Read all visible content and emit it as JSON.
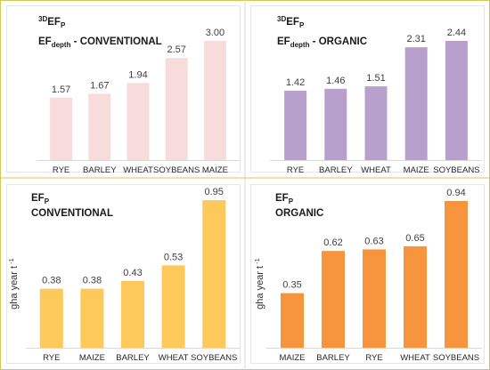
{
  "chart_data": [
    {
      "type": "bar",
      "title_lines": [
        {
          "sup": "3D",
          "main": "EF",
          "sub": "P",
          "rest": ""
        },
        {
          "sup": "",
          "main": "EF",
          "sub": "depth",
          "rest": " - CONVENTIONAL"
        }
      ],
      "ylabel": "",
      "categories": [
        "RYE",
        "BARLEY",
        "WHEAT",
        "SOYBEANS",
        "MAIZE"
      ],
      "values": [
        1.57,
        1.67,
        1.94,
        2.57,
        3.0
      ],
      "value_labels": [
        "1.57",
        "1.67",
        "1.94",
        "2.57",
        "3.00"
      ],
      "ylim": [
        0,
        3.0
      ],
      "color": "#f8dcdc",
      "grid": false
    },
    {
      "type": "bar",
      "title_lines": [
        {
          "sup": "3D",
          "main": "EF",
          "sub": "P",
          "rest": ""
        },
        {
          "sup": "",
          "main": "EF",
          "sub": "depth",
          "rest": " - ORGANIC"
        }
      ],
      "ylabel": "",
      "categories": [
        "RYE",
        "BARLEY",
        "WHEAT",
        "MAIZE",
        "SOYBEANS"
      ],
      "values": [
        1.42,
        1.46,
        1.51,
        2.31,
        2.44
      ],
      "value_labels": [
        "1.42",
        "1.46",
        "1.51",
        "2.31",
        "2.44"
      ],
      "ylim": [
        0,
        2.44
      ],
      "color": "#b8a0cc",
      "grid": false
    },
    {
      "type": "bar",
      "title_lines": [
        {
          "sup": "",
          "main": "EF",
          "sub": "P",
          "rest": ""
        },
        {
          "sup": "",
          "main": "CONVENTIONAL",
          "sub": "",
          "rest": ""
        }
      ],
      "ylabel": "gha year t",
      "ylabel_sup": "-1",
      "categories": [
        "RYE",
        "MAIZE",
        "BARLEY",
        "WHEAT",
        "SOYBEANS"
      ],
      "values": [
        0.38,
        0.38,
        0.43,
        0.53,
        0.95
      ],
      "value_labels": [
        "0.38",
        "0.38",
        "0.43",
        "0.53",
        "0.95"
      ],
      "ylim": [
        0,
        0.95
      ],
      "color": "#fdc95a",
      "grid": false
    },
    {
      "type": "bar",
      "title_lines": [
        {
          "sup": "",
          "main": "EF",
          "sub": "P",
          "rest": ""
        },
        {
          "sup": "",
          "main": "ORGANIC",
          "sub": "",
          "rest": ""
        }
      ],
      "ylabel": "gha year t",
      "ylabel_sup": "-1",
      "categories": [
        "MAIZE",
        "BARLEY",
        "RYE",
        "WHEAT",
        "SOYBEANS"
      ],
      "values": [
        0.35,
        0.62,
        0.63,
        0.65,
        0.94
      ],
      "value_labels": [
        "0.35",
        "0.62",
        "0.63",
        "0.65",
        "0.94"
      ],
      "ylim": [
        0,
        0.94
      ],
      "color": "#f7953e",
      "grid": false
    }
  ],
  "colors": {
    "frame": "#cccc55",
    "divider": "#d9d9d9",
    "panel_border": "#e6e6e6",
    "baseline": "#d9d9d9"
  }
}
